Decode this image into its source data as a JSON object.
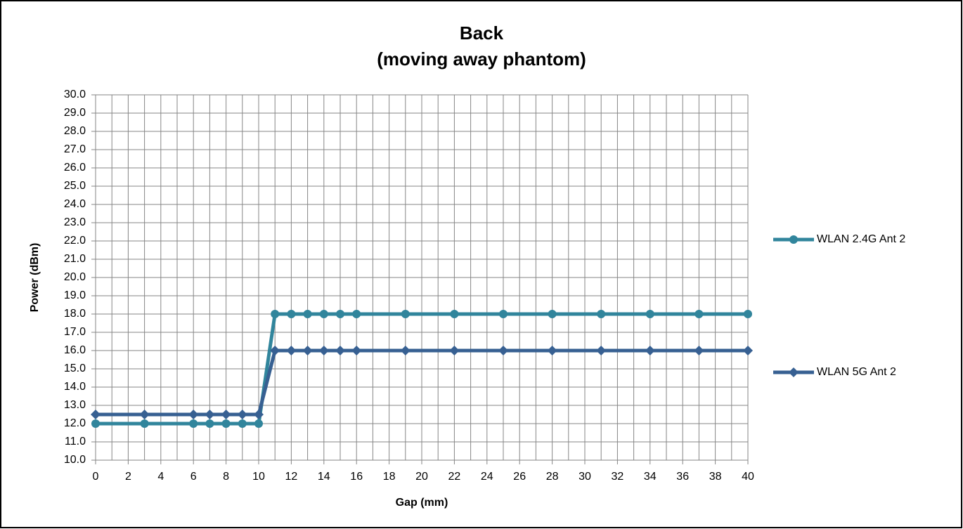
{
  "chart_data": {
    "type": "line",
    "title": [
      "Back",
      "(moving away phantom)"
    ],
    "x_label": "Gap (mm)",
    "y_label": "Power (dBm)",
    "x": [
      0,
      3,
      6,
      7,
      8,
      9,
      10,
      11,
      12,
      13,
      14,
      15,
      16,
      19,
      22,
      25,
      28,
      31,
      34,
      37,
      40
    ],
    "series": [
      {
        "name": "WLAN 2.4G Ant 2",
        "color": "#31859c",
        "marker": "circle",
        "values": [
          12,
          12,
          12,
          12,
          12,
          12,
          12,
          18,
          18,
          18,
          18,
          18,
          18,
          18,
          18,
          18,
          18,
          18,
          18,
          18,
          18
        ]
      },
      {
        "name": "WLAN 5G Ant 2",
        "color": "#376092",
        "marker": "diamond",
        "values": [
          12.5,
          12.5,
          12.5,
          12.5,
          12.5,
          12.5,
          12.5,
          16,
          16,
          16,
          16,
          16,
          16,
          16,
          16,
          16,
          16,
          16,
          16,
          16,
          16
        ]
      }
    ],
    "xlim": [
      0,
      40
    ],
    "xticks": [
      0,
      2,
      4,
      6,
      8,
      10,
      12,
      14,
      16,
      18,
      20,
      22,
      24,
      26,
      28,
      30,
      32,
      34,
      36,
      38,
      40
    ],
    "xminor_grid": [
      1,
      3,
      5,
      7,
      9,
      11,
      13,
      15,
      17,
      19,
      21,
      23,
      25,
      27,
      29,
      31,
      33,
      35,
      37,
      39
    ],
    "ylim": [
      10,
      30
    ],
    "yticks": [
      {
        "value": 10,
        "label": "10.0"
      },
      {
        "value": 11,
        "label": "11.0"
      },
      {
        "value": 12,
        "label": "12.0"
      },
      {
        "value": 13,
        "label": "13.0"
      },
      {
        "value": 14,
        "label": "14.0"
      },
      {
        "value": 15,
        "label": "15.0"
      },
      {
        "value": 16,
        "label": "16.0"
      },
      {
        "value": 17,
        "label": "17.0"
      },
      {
        "value": 18,
        "label": "18.0"
      },
      {
        "value": 19,
        "label": "19.0"
      },
      {
        "value": 20,
        "label": "20.0"
      },
      {
        "value": 21,
        "label": "21.0"
      },
      {
        "value": 22,
        "label": "22.0"
      },
      {
        "value": 23,
        "label": "23.0"
      },
      {
        "value": 24,
        "label": "24.0"
      },
      {
        "value": 25,
        "label": "25.0"
      },
      {
        "value": 26,
        "label": "26.0"
      },
      {
        "value": 27,
        "label": "27.0"
      },
      {
        "value": 28,
        "label": "28.0"
      },
      {
        "value": 29,
        "label": "29.0"
      },
      {
        "value": 30,
        "label": "30.0"
      }
    ],
    "grid": true,
    "legend": "right"
  }
}
